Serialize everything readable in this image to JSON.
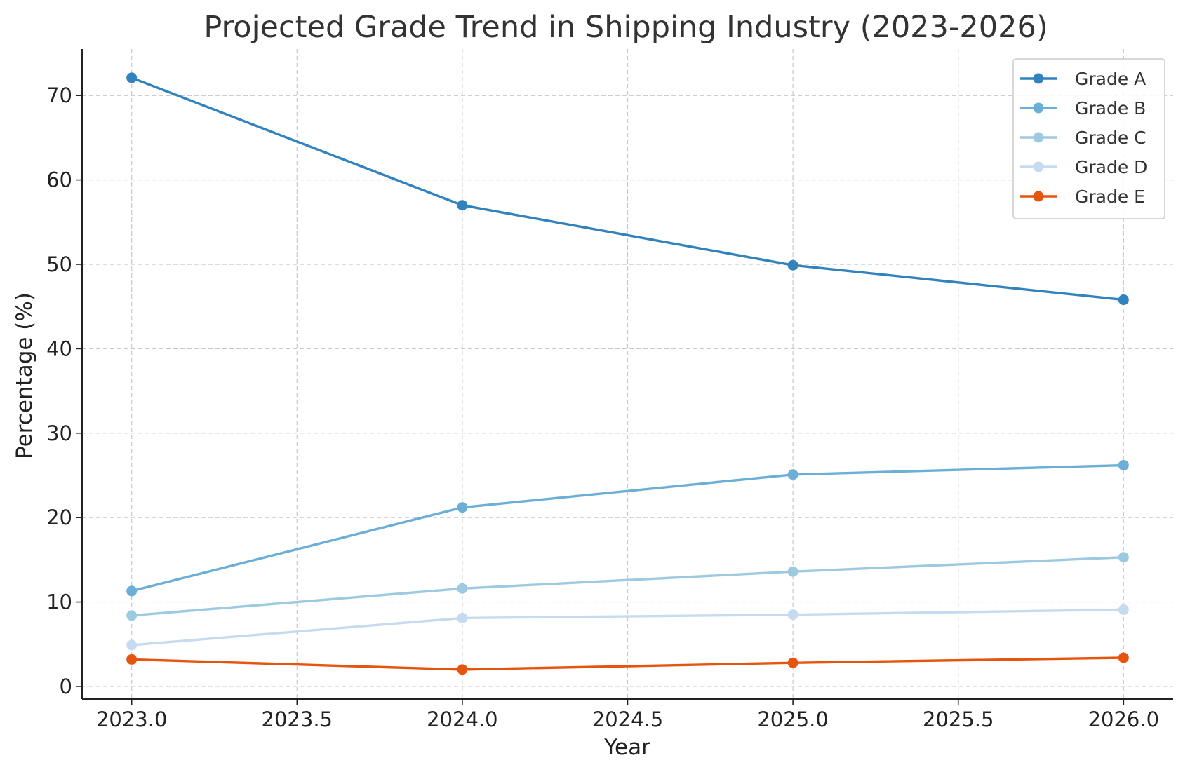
{
  "chart_data": {
    "type": "line",
    "title": "Projected Grade Trend in Shipping Industry (2023-2026)",
    "xlabel": "Year",
    "ylabel": "Percentage (%)",
    "x": [
      2023,
      2024,
      2025,
      2026
    ],
    "xlim": [
      2022.85,
      2026.15
    ],
    "ylim": [
      -1.5,
      75.5
    ],
    "xticks": [
      2023.0,
      2023.5,
      2024.0,
      2024.5,
      2025.0,
      2025.5,
      2026.0
    ],
    "xtick_labels": [
      "2023.0",
      "2023.5",
      "2024.0",
      "2024.5",
      "2025.0",
      "2025.5",
      "2026.0"
    ],
    "yticks": [
      0,
      10,
      20,
      30,
      40,
      50,
      60,
      70
    ],
    "ytick_labels": [
      "0",
      "10",
      "20",
      "30",
      "40",
      "50",
      "60",
      "70"
    ],
    "grid": true,
    "legend_position": "top-right",
    "series": [
      {
        "name": "Grade A",
        "color": "#3182bd",
        "values": [
          72.1,
          57.0,
          49.9,
          45.8
        ]
      },
      {
        "name": "Grade B",
        "color": "#6baed6",
        "values": [
          11.3,
          21.2,
          25.1,
          26.2
        ]
      },
      {
        "name": "Grade C",
        "color": "#9ecae1",
        "values": [
          8.4,
          11.6,
          13.6,
          15.3
        ]
      },
      {
        "name": "Grade D",
        "color": "#c6dbef",
        "values": [
          4.9,
          8.1,
          8.5,
          9.1
        ]
      },
      {
        "name": "Grade E",
        "color": "#e6550d",
        "values": [
          3.2,
          2.0,
          2.8,
          3.4
        ]
      }
    ]
  }
}
